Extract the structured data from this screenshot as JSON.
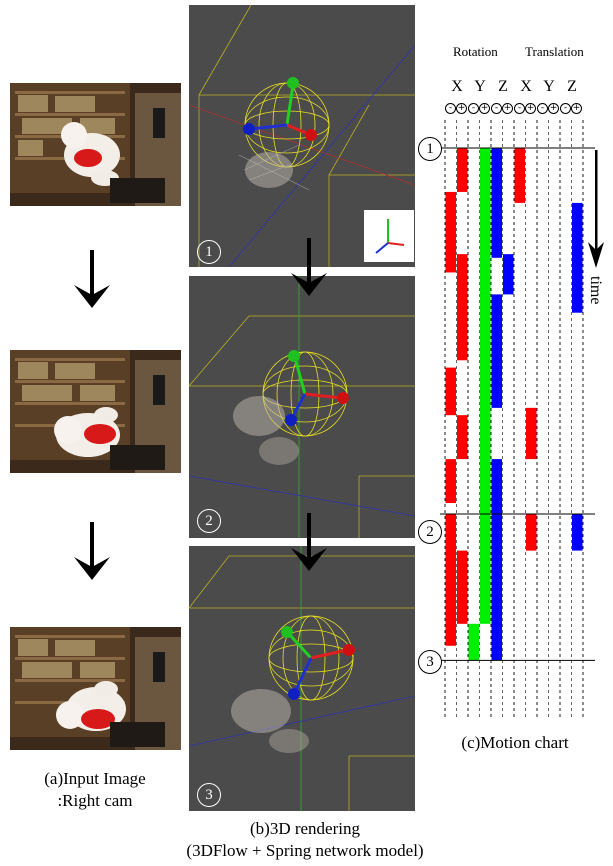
{
  "panel_a": {
    "caption_line1": "(a)Input Image",
    "caption_line2": ":Right cam"
  },
  "panel_b": {
    "caption_line1": "(b)3D rendering",
    "caption_line2": "(3DFlow + Spring network model)"
  },
  "panel_c": {
    "caption": "(c)Motion  chart",
    "header_rotation": "Rotation",
    "header_translation": "Translation",
    "axis_labels": [
      "X",
      "Y",
      "Z",
      "X",
      "Y",
      "Z"
    ],
    "sign_labels": [
      "-",
      "+",
      "-",
      "+",
      "-",
      "+",
      "-",
      "+",
      "-",
      "+",
      "-",
      "+"
    ],
    "time_label": "time"
  },
  "step_labels": [
    "1",
    "2",
    "3"
  ],
  "colors": {
    "x": "#ff0000",
    "y": "#00ee00",
    "z": "#0000ff"
  },
  "chart_data": {
    "type": "table",
    "time_marks": [
      {
        "label": "1",
        "t": 0
      },
      {
        "label": "2",
        "t": 10
      },
      {
        "label": "3",
        "t": 14
      }
    ],
    "segments": [
      {
        "col": 1,
        "color": "x",
        "t0": 0,
        "t1": 1.2
      },
      {
        "col": 0,
        "color": "x",
        "t0": 1.2,
        "t1": 3.4
      },
      {
        "col": 1,
        "color": "x",
        "t0": 2.9,
        "t1": 5.8
      },
      {
        "col": 0,
        "color": "x",
        "t0": 6.0,
        "t1": 7.3
      },
      {
        "col": 1,
        "color": "x",
        "t0": 7.3,
        "t1": 8.5
      },
      {
        "col": 0,
        "color": "x",
        "t0": 8.5,
        "t1": 9.7
      },
      {
        "col": 0,
        "color": "x",
        "t0": 10.0,
        "t1": 13.6
      },
      {
        "col": 1,
        "color": "x",
        "t0": 11.0,
        "t1": 13.0
      },
      {
        "col": 3,
        "color": "y",
        "t0": 0,
        "t1": 13.0
      },
      {
        "col": 2,
        "color": "y",
        "t0": 13.0,
        "t1": 14.0
      },
      {
        "col": 4,
        "color": "z",
        "t0": 0,
        "t1": 3.0
      },
      {
        "col": 5,
        "color": "z",
        "t0": 2.9,
        "t1": 4.0
      },
      {
        "col": 4,
        "color": "z",
        "t0": 4.0,
        "t1": 7.1
      },
      {
        "col": 4,
        "color": "z",
        "t0": 8.5,
        "t1": 14.0
      },
      {
        "col": 6,
        "color": "x",
        "t0": 0,
        "t1": 1.5
      },
      {
        "col": 7,
        "color": "x",
        "t0": 7.1,
        "t1": 8.5
      },
      {
        "col": 7,
        "color": "x",
        "t0": 10.0,
        "t1": 11.0
      },
      {
        "col": 11,
        "color": "z",
        "t0": 1.5,
        "t1": 4.5
      },
      {
        "col": 11,
        "color": "z",
        "t0": 10.0,
        "t1": 11.0
      }
    ]
  }
}
